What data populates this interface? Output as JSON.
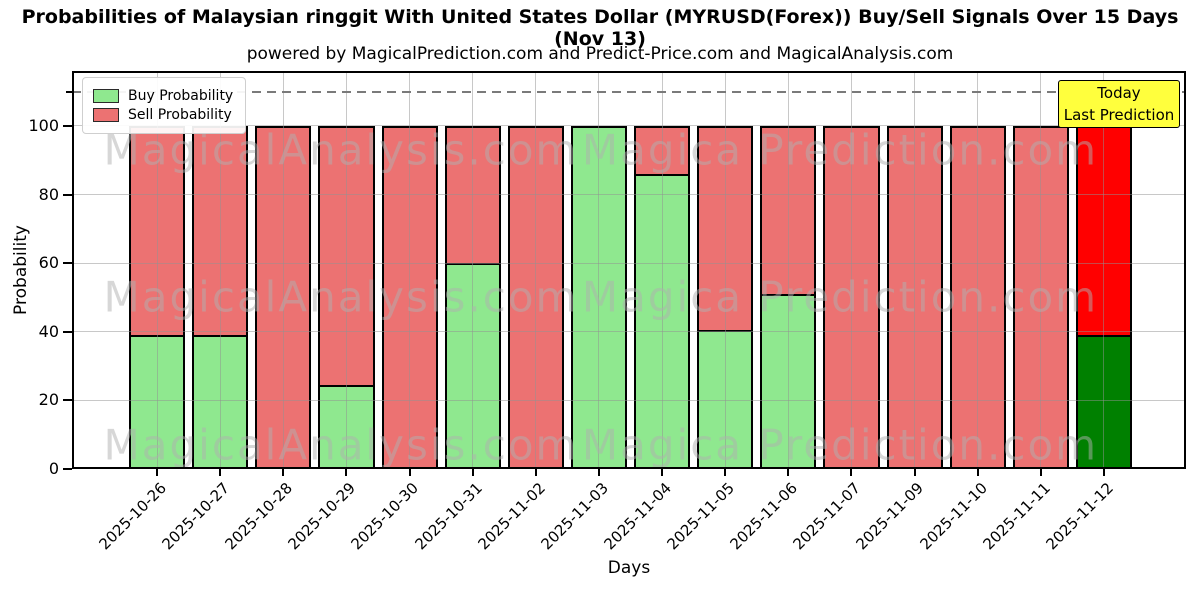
{
  "chart_data": {
    "type": "bar",
    "stacked": true,
    "title": "Probabilities of Malaysian ringgit With United States Dollar (MYRUSD(Forex)) Buy/Sell Signals Over 15 Days (Nov 13)",
    "subtitle": "powered by MagicalPrediction.com and Predict-Price.com and MagicalAnalysis.com",
    "xlabel": "Days",
    "ylabel": "Probability",
    "categories": [
      "2025-10-26",
      "2025-10-27",
      "2025-10-28",
      "2025-10-29",
      "2025-10-30",
      "2025-10-31",
      "2025-11-02",
      "2025-11-03",
      "2025-11-04",
      "2025-11-05",
      "2025-11-06",
      "2025-11-07",
      "2025-11-09",
      "2025-11-10",
      "2025-11-11",
      "2025-11-12"
    ],
    "series": [
      {
        "name": "Buy Probability",
        "color": "#8fe88f",
        "today_color": "#008000",
        "values": [
          39,
          39,
          0,
          24.5,
          0,
          60,
          0,
          100,
          86,
          40.5,
          51,
          0,
          0,
          0,
          0,
          39
        ]
      },
      {
        "name": "Sell Probability",
        "color": "#ec7272",
        "today_color": "#ff0000",
        "values": [
          61,
          61,
          100,
          75.5,
          100,
          40,
          100,
          0,
          14,
          59.5,
          49,
          100,
          100,
          100,
          100,
          61
        ]
      }
    ],
    "bar_totals": 100,
    "ylim": [
      0,
      116
    ],
    "yticks": [
      0,
      20,
      40,
      60,
      80,
      100
    ],
    "grid": true,
    "legend_position": "upper left",
    "dashed_line_y": 110,
    "bar_edge_color": "#000000",
    "today": {
      "index": 15,
      "label_lines": [
        "Today",
        "Last Prediction"
      ],
      "box_color": "#ffff3d"
    },
    "watermarks": {
      "left": "MagicalAnalysis.com",
      "right": "Magica Prediction.com",
      "rows": 3
    }
  }
}
